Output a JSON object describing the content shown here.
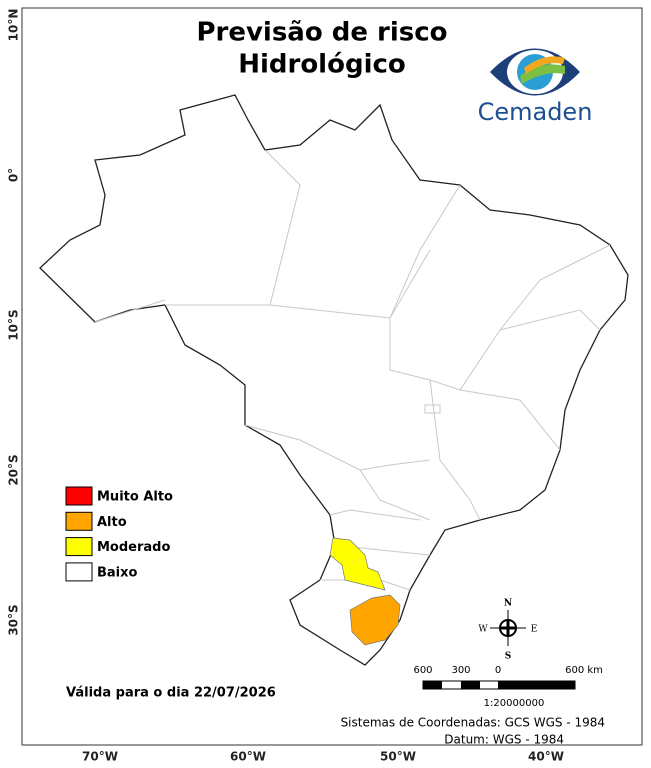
{
  "title": [
    "Previsão de risco",
    "Hidrológico"
  ],
  "logo": {
    "text": "Cemaden"
  },
  "legend": [
    {
      "label": "Muito Alto",
      "color": "#ff0000"
    },
    {
      "label": "Alto",
      "color": "#ffa500"
    },
    {
      "label": "Moderado",
      "color": "#ffff00"
    },
    {
      "label": "Baixo",
      "color": "#ffffff"
    }
  ],
  "valid_date": "Válida para o dia 22/07/2026",
  "lat_labels": [
    "10°N",
    "0°",
    "10°S",
    "20°S",
    "30°S"
  ],
  "lon_labels": [
    "70°W",
    "60°W",
    "50°W",
    "40°W"
  ],
  "compass": {
    "north": "N",
    "south": "S",
    "east": "E",
    "west": "W"
  },
  "scale": {
    "labels": [
      "600",
      "300",
      "0",
      "600 km"
    ],
    "ratio": "1:20000000"
  },
  "footer": [
    "Sistemas de Coordenadas: GCS WGS - 1984",
    "Datum: WGS - 1984"
  ]
}
